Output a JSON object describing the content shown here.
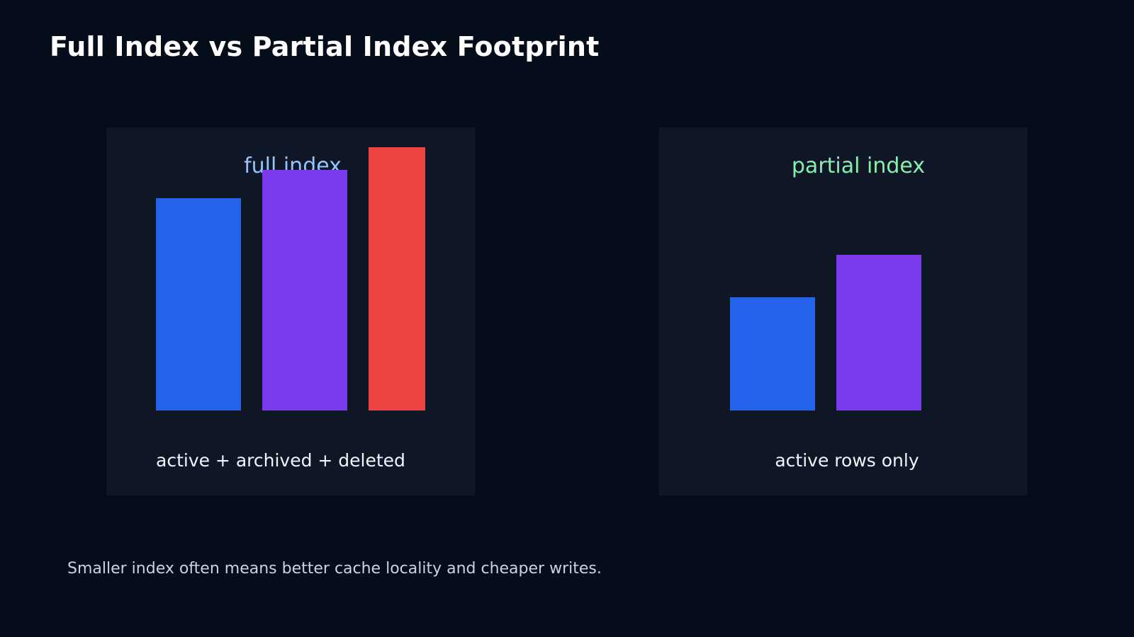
{
  "title": "Full Index vs Partial Index Footprint",
  "footnote": "Smaller index often means better cache locality and cheaper writes.",
  "colors": {
    "background": "#060d1a",
    "panel": "#0f1626",
    "bar_active": "#2563eb",
    "bar_archived": "#7c3aed",
    "bar_deleted": "#ef4444",
    "full_index_title": "#93c5fd",
    "partial_index_title": "#86efac"
  },
  "chart_data": [
    {
      "type": "bar",
      "title": "full index",
      "title_color": "#93c5fd",
      "caption": "active + archived + deleted",
      "ylim": [
        0,
        100
      ],
      "bars": [
        {
          "value": 75,
          "color": "#2563eb"
        },
        {
          "value": 85,
          "color": "#7c3aed"
        },
        {
          "value": 93,
          "color": "#ef4444"
        }
      ]
    },
    {
      "type": "bar",
      "title": "partial index",
      "title_color": "#86efac",
      "caption": "active rows only",
      "ylim": [
        0,
        100
      ],
      "bars": [
        {
          "value": 40,
          "color": "#2563eb"
        },
        {
          "value": 55,
          "color": "#7c3aed"
        }
      ]
    }
  ]
}
